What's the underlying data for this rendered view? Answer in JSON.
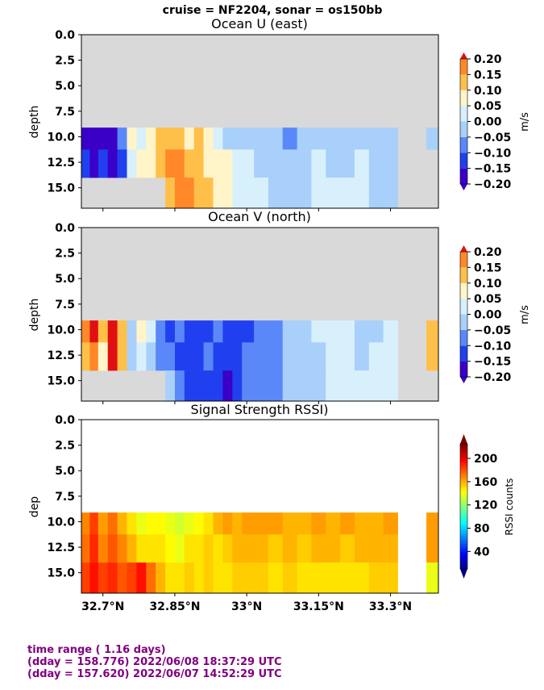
{
  "header": {
    "title": "cruise = NF2204,  sonar = os150bb"
  },
  "chart_data": [
    {
      "type": "heatmap",
      "title": "Ocean U (east)",
      "ylabel": "depth",
      "ylim": [
        17,
        0
      ],
      "yticks": [
        "0.0",
        "2.5",
        "5.0",
        "7.5",
        "10.0",
        "12.5",
        "15.0"
      ],
      "colorbar": {
        "label": "m/s",
        "range": [
          -0.2,
          0.2
        ],
        "ticks": [
          "0.20",
          "0.15",
          "0.10",
          "0.05",
          "0.00",
          "−0.05",
          "−0.10",
          "−0.15",
          "−0.20"
        ]
      },
      "data_depth_range": [
        9.1,
        17.0
      ],
      "x_lat": [
        32.665,
        32.68,
        32.7,
        32.72,
        32.74,
        32.76,
        32.78,
        32.8,
        32.82,
        32.84,
        32.86,
        32.88,
        32.9,
        32.92,
        32.94,
        32.96,
        32.98,
        33.0,
        33.03,
        33.06,
        33.09,
        33.12,
        33.15,
        33.18,
        33.21,
        33.24,
        33.27,
        33.3,
        33.33,
        33.36,
        33.39
      ],
      "depth_bins": [
        10.0,
        12.5,
        15.5
      ],
      "u_values": [
        [
          -0.18,
          -0.2,
          -0.16,
          -0.2,
          -0.1,
          0.05,
          0.02,
          0.08,
          0.12,
          0.1,
          0.1,
          0.08,
          0.1,
          0.05,
          0.0,
          -0.02,
          -0.05,
          -0.05,
          -0.03,
          -0.05,
          -0.08,
          -0.05,
          -0.03,
          -0.05,
          -0.05,
          -0.05,
          -0.05,
          -0.05,
          null,
          null,
          -0.05
        ],
        [
          -0.15,
          -0.18,
          -0.12,
          -0.2,
          -0.15,
          0.0,
          0.05,
          0.08,
          0.12,
          0.15,
          0.15,
          0.12,
          0.1,
          0.08,
          0.05,
          0.05,
          0.0,
          0.0,
          -0.05,
          -0.05,
          -0.05,
          -0.03,
          0.0,
          -0.05,
          -0.05,
          0.0,
          -0.05,
          -0.05,
          null,
          null,
          null
        ],
        [
          null,
          null,
          null,
          null,
          null,
          null,
          null,
          null,
          null,
          0.12,
          0.15,
          0.15,
          0.12,
          0.1,
          0.05,
          0.05,
          0.0,
          0.0,
          0.0,
          -0.05,
          -0.05,
          -0.03,
          0.0,
          0.0,
          0.0,
          0.0,
          -0.05,
          -0.05,
          null,
          null,
          null
        ]
      ]
    },
    {
      "type": "heatmap",
      "title": "Ocean V (north)",
      "ylabel": "depth",
      "ylim": [
        17,
        0
      ],
      "yticks": [
        "0.0",
        "2.5",
        "5.0",
        "7.5",
        "10.0",
        "12.5",
        "15.0"
      ],
      "colorbar": {
        "label": "m/s",
        "range": [
          -0.2,
          0.2
        ],
        "ticks": [
          "0.20",
          "0.15",
          "0.10",
          "0.05",
          "0.00",
          "−0.05",
          "−0.10",
          "−0.15",
          "−0.20"
        ]
      },
      "data_depth_range": [
        9.1,
        17.0
      ],
      "x_lat": [
        32.665,
        32.68,
        32.7,
        32.72,
        32.74,
        32.76,
        32.78,
        32.8,
        32.82,
        32.84,
        32.86,
        32.88,
        32.9,
        32.92,
        32.94,
        32.96,
        32.98,
        33.0,
        33.03,
        33.06,
        33.09,
        33.12,
        33.15,
        33.18,
        33.21,
        33.24,
        33.27,
        33.3,
        33.33,
        33.36,
        33.39
      ],
      "depth_bins": [
        10.0,
        12.5,
        15.5
      ],
      "v_values": [
        [
          0.15,
          0.2,
          0.1,
          0.2,
          0.12,
          -0.05,
          0.05,
          0.0,
          -0.1,
          -0.15,
          -0.1,
          -0.15,
          -0.15,
          -0.15,
          -0.1,
          -0.15,
          -0.15,
          -0.15,
          -0.1,
          -0.1,
          -0.05,
          -0.05,
          0.0,
          0.0,
          0.0,
          -0.05,
          -0.05,
          0.0,
          null,
          null,
          0.1
        ],
        [
          0.1,
          0.15,
          0.05,
          0.2,
          0.1,
          -0.05,
          0.0,
          -0.05,
          -0.1,
          -0.1,
          -0.15,
          -0.15,
          -0.15,
          -0.1,
          -0.15,
          -0.15,
          -0.15,
          -0.1,
          -0.1,
          -0.1,
          -0.05,
          -0.05,
          -0.05,
          0.0,
          0.0,
          -0.05,
          0.0,
          0.0,
          null,
          null,
          0.1
        ],
        [
          null,
          null,
          null,
          null,
          null,
          null,
          null,
          null,
          null,
          -0.05,
          -0.1,
          -0.15,
          -0.15,
          -0.15,
          -0.15,
          -0.2,
          -0.15,
          -0.1,
          -0.1,
          -0.1,
          -0.05,
          -0.05,
          -0.05,
          0.0,
          0.0,
          0.0,
          0.0,
          0.0,
          null,
          null,
          null
        ]
      ]
    },
    {
      "type": "heatmap",
      "title": "Signal Strength RSSI)",
      "ylabel": "dep",
      "ylim": [
        17,
        0
      ],
      "yticks": [
        "0.0",
        "2.5",
        "5.0",
        "7.5",
        "10.0",
        "12.5",
        "15.0"
      ],
      "xticks": [
        "32.7°N",
        "32.85°N",
        "33°N",
        "33.15°N",
        "33.3°N"
      ],
      "colorbar": {
        "label": "RSSI counts",
        "range": [
          10,
          225
        ],
        "ticks": [
          "200",
          "160",
          "120",
          "80",
          "40"
        ]
      },
      "data_depth_range": [
        9.1,
        17.0
      ],
      "x_lat": [
        32.665,
        32.68,
        32.7,
        32.72,
        32.74,
        32.76,
        32.78,
        32.8,
        32.82,
        32.84,
        32.86,
        32.88,
        32.9,
        32.92,
        32.94,
        32.96,
        32.98,
        33.0,
        33.03,
        33.06,
        33.09,
        33.12,
        33.15,
        33.18,
        33.21,
        33.24,
        33.27,
        33.3,
        33.33,
        33.36,
        33.39
      ],
      "depth_bins": [
        10.0,
        12.5,
        15.5
      ],
      "rssi_values": [
        [
          170,
          185,
          165,
          175,
          160,
          150,
          140,
          145,
          145,
          140,
          135,
          140,
          145,
          150,
          160,
          165,
          160,
          165,
          165,
          165,
          160,
          160,
          165,
          160,
          165,
          160,
          160,
          165,
          null,
          null,
          165
        ],
        [
          175,
          190,
          170,
          180,
          170,
          160,
          150,
          150,
          150,
          145,
          140,
          150,
          150,
          155,
          150,
          155,
          160,
          160,
          160,
          155,
          160,
          155,
          160,
          160,
          155,
          160,
          160,
          160,
          null,
          null,
          165
        ],
        [
          185,
          195,
          185,
          190,
          180,
          185,
          195,
          175,
          160,
          150,
          150,
          155,
          150,
          155,
          150,
          150,
          155,
          155,
          155,
          150,
          155,
          150,
          150,
          150,
          150,
          150,
          155,
          155,
          null,
          null,
          140
        ]
      ]
    }
  ],
  "footer": {
    "line1": "time range ( 1.16 days)",
    "line2": "(dday = 158.776) 2022/06/08 18:37:29 UTC",
    "line3": "(dday = 157.620) 2022/06/07 14:52:29 UTC"
  }
}
